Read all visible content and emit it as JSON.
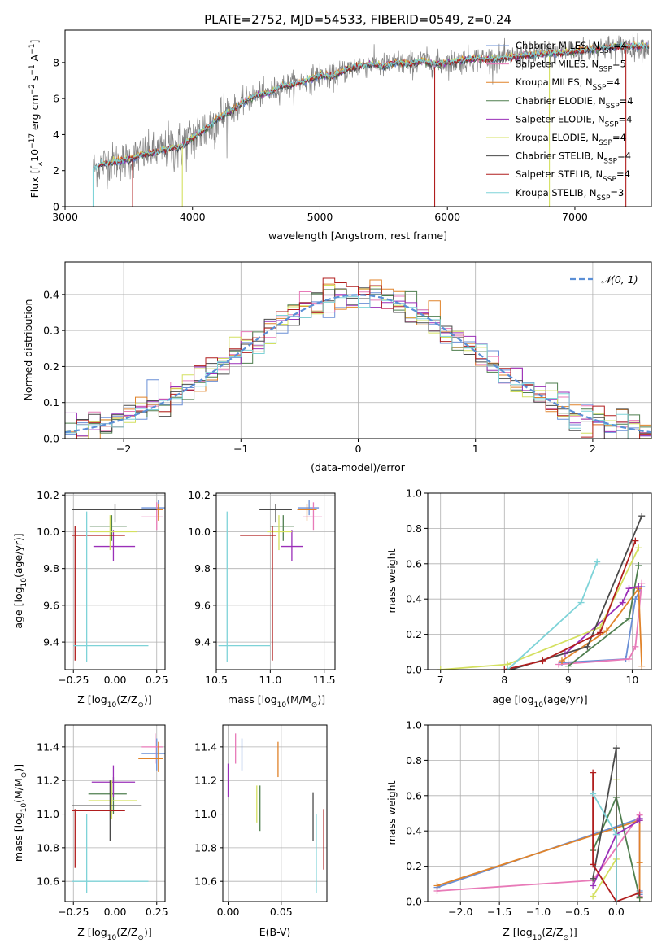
{
  "figure": {
    "title": "PLATE=2752, MJD=54533, FIBERID=0549, z=0.24"
  },
  "colors": {
    "Chabrier MILES": "#6a8fd6",
    "Salpeter MILES": "#e87ab8",
    "Kroupa MILES": "#e0832a",
    "Chabrier ELODIE": "#4f7f4f",
    "Salpeter ELODIE": "#9a2fb8",
    "Kroupa ELODIE": "#d4e060",
    "Chabrier STELIB": "#4a4a4a",
    "Salpeter STELIB": "#b01e1e",
    "Kroupa STELIB": "#7ed3d8",
    "data": "#808080",
    "normal": "#5b8fd6"
  },
  "chart_data": [
    {
      "type": "line",
      "panel": "spectrum",
      "xlabel": "wavelength [Angstrom, rest frame]",
      "ylabel": "Flux [f",
      "ylabel_sub": "λ",
      "ylabel_rest": "10",
      "ylabel_sup": "−17",
      "ylabel_unit": " erg cm",
      "ylabel_sup2": "−2",
      "ylabel_unit2": " s",
      "ylabel_sup3": "−1",
      "ylabel_unit3": " A",
      "ylabel_sup4": "−1",
      "ylabel_end": "]",
      "xlim": [
        3000,
        7600
      ],
      "ylim": [
        0,
        9.8
      ],
      "xticks": [
        "3000",
        "4000",
        "5000",
        "6000",
        "7000"
      ],
      "yticks": [
        "0",
        "2",
        "4",
        "6",
        "8"
      ],
      "continuum": {
        "x": [
          3220,
          3300,
          3400,
          3500,
          3600,
          3700,
          3800,
          3900,
          4000,
          4100,
          4200,
          4300,
          4400,
          4500,
          4600,
          4700,
          4800,
          4900,
          5000,
          5100,
          5200,
          5300,
          5400,
          5500,
          5600,
          5700,
          5800,
          5900,
          6000,
          6200,
          6400,
          6600,
          6800,
          7000,
          7200,
          7400
        ],
        "y": [
          2.1,
          2.4,
          2.5,
          2.6,
          2.9,
          3.0,
          3.2,
          3.3,
          3.8,
          4.3,
          4.9,
          5.3,
          5.8,
          6.2,
          6.3,
          6.7,
          6.8,
          7.0,
          7.3,
          7.2,
          7.6,
          7.8,
          7.9,
          7.8,
          8.0,
          7.9,
          8.1,
          7.9,
          8.0,
          8.2,
          8.2,
          8.4,
          8.5,
          8.6,
          8.8,
          8.9
        ]
      },
      "legend": [
        {
          "label": "Chabrier MILES, N",
          "sub": "SSP",
          "tail": "=4"
        },
        {
          "label": "Salpeter MILES, N",
          "sub": "SSP",
          "tail": "=5"
        },
        {
          "label": "Kroupa MILES, N",
          "sub": "SSP",
          "tail": "=4"
        },
        {
          "label": "Chabrier ELODIE, N",
          "sub": "SSP",
          "tail": "=4"
        },
        {
          "label": "Salpeter ELODIE, N",
          "sub": "SSP",
          "tail": "=4"
        },
        {
          "label": "Kroupa ELODIE, N",
          "sub": "SSP",
          "tail": "=4"
        },
        {
          "label": "Chabrier STELIB, N",
          "sub": "SSP",
          "tail": "=4"
        },
        {
          "label": "Salpeter STELIB, N",
          "sub": "SSP",
          "tail": "=4"
        },
        {
          "label": "Kroupa STELIB, N",
          "sub": "SSP",
          "tail": "=3"
        }
      ]
    },
    {
      "type": "histogram",
      "panel": "residuals",
      "xlabel": "(data-model)/error",
      "ylabel": "Normed distribution",
      "xlim": [
        -2.5,
        2.5
      ],
      "ylim": [
        0,
        0.49
      ],
      "xticks": [
        "−2",
        "−1",
        "0",
        "1",
        "2"
      ],
      "yticks": [
        "0.0",
        "0.1",
        "0.2",
        "0.3",
        "0.4"
      ],
      "legend": "𝒩(0, 1)",
      "bin_width": 0.1,
      "grid": true
    },
    {
      "type": "scatter",
      "panel": "Z-age",
      "xlabel": "Z [log",
      "xlabel_sub": "10",
      "xlabel_rest": "(Z/Z",
      "xlabel_sub2": "⊙",
      "xlabel_end": ")]",
      "ylabel": "age  [log",
      "ylabel_sub": "10",
      "ylabel_end": "(age/yr)]",
      "xlim": [
        -0.3,
        0.3
      ],
      "ylim": [
        9.25,
        10.21
      ],
      "xticks": [
        "−0.25",
        "0.00",
        "0.25"
      ],
      "yticks": [
        "9.4",
        "9.6",
        "9.8",
        "10.0",
        "10.2"
      ],
      "points": [
        {
          "m": "Chabrier MILES",
          "x": 0.26,
          "xe": [
            0.16,
            0.3
          ],
          "y": 10.13,
          "ye": [
            10.09,
            10.17
          ]
        },
        {
          "m": "Salpeter MILES",
          "x": 0.25,
          "xe": [
            0.16,
            0.29
          ],
          "y": 10.08,
          "ye": [
            10.01,
            10.16
          ]
        },
        {
          "m": "Kroupa MILES",
          "x": 0.26,
          "xe": [
            0.16,
            0.29
          ],
          "y": 10.12,
          "ye": [
            10.06,
            10.15
          ]
        },
        {
          "m": "Chabrier ELODIE",
          "x": -0.02,
          "xe": [
            -0.15,
            0.07
          ],
          "y": 10.03,
          "ye": [
            9.95,
            10.09
          ]
        },
        {
          "m": "Salpeter ELODIE",
          "x": -0.01,
          "xe": [
            -0.13,
            0.12
          ],
          "y": 9.92,
          "ye": [
            9.84,
            10.01
          ]
        },
        {
          "m": "Kroupa ELODIE",
          "x": -0.03,
          "xe": [
            -0.15,
            0.13
          ],
          "y": 10.0,
          "ye": [
            9.9,
            10.09
          ]
        },
        {
          "m": "Chabrier STELIB",
          "x": 0.0,
          "xe": [
            -0.26,
            0.25
          ],
          "y": 10.12,
          "ye": [
            10.05,
            10.15
          ]
        },
        {
          "m": "Salpeter STELIB",
          "x": -0.24,
          "xe": [
            -0.26,
            0.06
          ],
          "y": 9.98,
          "ye": [
            9.3,
            10.03
          ]
        },
        {
          "m": "Kroupa STELIB",
          "x": -0.17,
          "xe": [
            -0.25,
            0.2
          ],
          "y": 9.38,
          "ye": [
            9.29,
            10.11
          ]
        }
      ]
    },
    {
      "type": "scatter",
      "panel": "mass-age",
      "xlabel": "mass [log",
      "xlabel_sub": "10",
      "xlabel_end": "(M/M",
      "xlabel_sub2": "⊙",
      "xlabel_end2": ")]",
      "xlim": [
        10.5,
        11.6
      ],
      "ylim": [
        9.25,
        10.21
      ],
      "xticks": [
        "10.5",
        "11.0",
        "11.5"
      ],
      "yticks": [
        "9.4",
        "9.6",
        "9.8",
        "10.0",
        "10.2"
      ],
      "points": [
        {
          "m": "Chabrier MILES",
          "x": 11.36,
          "xe": [
            11.26,
            11.45
          ],
          "y": 10.13,
          "ye": [
            10.09,
            10.17
          ]
        },
        {
          "m": "Salpeter MILES",
          "x": 11.4,
          "xe": [
            11.3,
            11.48
          ],
          "y": 10.08,
          "ye": [
            10.01,
            10.16
          ]
        },
        {
          "m": "Kroupa MILES",
          "x": 11.34,
          "xe": [
            11.25,
            11.43
          ],
          "y": 10.12,
          "ye": [
            10.06,
            10.15
          ]
        },
        {
          "m": "Chabrier ELODIE",
          "x": 11.12,
          "xe": [
            11.0,
            11.22
          ],
          "y": 10.03,
          "ye": [
            9.95,
            10.09
          ]
        },
        {
          "m": "Salpeter ELODIE",
          "x": 11.2,
          "xe": [
            11.1,
            11.3
          ],
          "y": 9.92,
          "ye": [
            9.84,
            10.01
          ]
        },
        {
          "m": "Kroupa ELODIE",
          "x": 11.08,
          "xe": [
            10.97,
            11.2
          ],
          "y": 10.0,
          "ye": [
            9.9,
            10.09
          ]
        },
        {
          "m": "Chabrier STELIB",
          "x": 11.05,
          "xe": [
            10.9,
            11.2
          ],
          "y": 10.12,
          "ye": [
            10.05,
            10.15
          ]
        },
        {
          "m": "Salpeter STELIB",
          "x": 11.02,
          "xe": [
            10.72,
            11.05
          ],
          "y": 9.98,
          "ye": [
            9.3,
            10.03
          ]
        },
        {
          "m": "Kroupa STELIB",
          "x": 10.6,
          "xe": [
            10.52,
            11.0
          ],
          "y": 9.38,
          "ye": [
            9.29,
            10.11
          ]
        }
      ]
    },
    {
      "type": "line",
      "panel": "age-weight",
      "xlabel": "age  [log",
      "xlabel_sub": "10",
      "xlabel_end": "(age/yr)]",
      "ylabel": "mass weight",
      "xlim": [
        6.8,
        10.3
      ],
      "ylim": [
        0,
        1
      ],
      "xticks": [
        "7",
        "8",
        "9",
        "10"
      ],
      "yticks": [
        "0.0",
        "0.2",
        "0.4",
        "0.6",
        "0.8",
        "1.0"
      ],
      "series": [
        {
          "m": "Chabrier MILES",
          "x": [
            8.9,
            9.9,
            10.05,
            10.15
          ],
          "y": [
            0.04,
            0.06,
            0.4,
            0.47
          ]
        },
        {
          "m": "Salpeter MILES",
          "x": [
            8.85,
            9.95,
            10.05,
            10.15
          ],
          "y": [
            0.03,
            0.06,
            0.13,
            0.49
          ]
        },
        {
          "m": "Kroupa MILES",
          "x": [
            8.9,
            9.6,
            10.1,
            10.15
          ],
          "y": [
            0.05,
            0.22,
            0.46,
            0.02
          ]
        },
        {
          "m": "Chabrier ELODIE",
          "x": [
            9.0,
            9.95,
            10.1
          ],
          "y": [
            0.02,
            0.29,
            0.59
          ]
        },
        {
          "m": "Salpeter ELODIE",
          "x": [
            8.95,
            9.85,
            9.95,
            10.1
          ],
          "y": [
            0.09,
            0.38,
            0.46,
            0.47
          ]
        },
        {
          "m": "Kroupa ELODIE",
          "x": [
            7.0,
            8.05,
            9.5,
            10.1
          ],
          "y": [
            0.0,
            0.03,
            0.24,
            0.69
          ]
        },
        {
          "m": "Chabrier STELIB",
          "x": [
            8.1,
            9.3,
            10.15
          ],
          "y": [
            0.0,
            0.13,
            0.87
          ]
        },
        {
          "m": "Salpeter STELIB",
          "x": [
            8.0,
            8.6,
            9.5,
            10.05
          ],
          "y": [
            0.0,
            0.05,
            0.21,
            0.73
          ]
        },
        {
          "m": "Kroupa STELIB",
          "x": [
            8.05,
            9.2,
            9.45
          ],
          "y": [
            0.0,
            0.38,
            0.61
          ]
        }
      ]
    },
    {
      "type": "scatter",
      "panel": "Z-mass",
      "xlabel": "Z [log",
      "xlabel_sub": "10",
      "xlabel_rest": "(Z/Z",
      "xlabel_sub2": "⊙",
      "xlabel_end": ")]",
      "ylabel": "mass [log",
      "ylabel_sub": "10",
      "ylabel_rest": "(M/M",
      "ylabel_sub2": "⊙",
      "ylabel_end": ")]",
      "xlim": [
        -0.3,
        0.3
      ],
      "ylim": [
        10.48,
        11.53
      ],
      "xticks": [
        "−0.25",
        "0.00",
        "0.25"
      ],
      "yticks": [
        "10.6",
        "10.8",
        "11.0",
        "11.2",
        "11.4"
      ],
      "points": [
        {
          "m": "Chabrier MILES",
          "x": 0.25,
          "xe": [
            0.16,
            0.3
          ],
          "y": 11.36,
          "ye": [
            11.26,
            11.45
          ]
        },
        {
          "m": "Salpeter MILES",
          "x": 0.24,
          "xe": [
            0.16,
            0.29
          ],
          "y": 11.4,
          "ye": [
            11.3,
            11.48
          ]
        },
        {
          "m": "Kroupa MILES",
          "x": 0.26,
          "xe": [
            0.14,
            0.29
          ],
          "y": 11.33,
          "ye": [
            11.25,
            11.43
          ]
        },
        {
          "m": "Chabrier ELODIE",
          "x": -0.01,
          "xe": [
            -0.16,
            0.07
          ],
          "y": 11.12,
          "ye": [
            11.0,
            11.22
          ]
        },
        {
          "m": "Salpeter ELODIE",
          "x": -0.01,
          "xe": [
            -0.14,
            0.12
          ],
          "y": 11.19,
          "ye": [
            11.1,
            11.29
          ]
        },
        {
          "m": "Kroupa ELODIE",
          "x": -0.02,
          "xe": [
            -0.16,
            0.13
          ],
          "y": 11.08,
          "ye": [
            10.97,
            11.2
          ]
        },
        {
          "m": "Chabrier STELIB",
          "x": -0.03,
          "xe": [
            -0.26,
            0.16
          ],
          "y": 11.05,
          "ye": [
            10.84,
            11.2
          ]
        },
        {
          "m": "Salpeter STELIB",
          "x": -0.24,
          "xe": [
            -0.26,
            0.06
          ],
          "y": 11.02,
          "ye": [
            10.68,
            11.03
          ]
        },
        {
          "m": "Kroupa STELIB",
          "x": -0.17,
          "xe": [
            -0.26,
            0.2
          ],
          "y": 10.6,
          "ye": [
            10.53,
            11.0
          ]
        }
      ]
    },
    {
      "type": "errorbar",
      "panel": "EBV-mass",
      "xlabel": "E(B-V)",
      "xlim": [
        -0.005,
        0.093
      ],
      "ylim": [
        10.48,
        11.53
      ],
      "xticks": [
        "0.00",
        "0.05"
      ],
      "yticks": [
        "10.6",
        "10.8",
        "11.0",
        "11.2",
        "11.4"
      ],
      "points": [
        {
          "m": "Chabrier MILES",
          "x": 0.013,
          "ye": [
            11.26,
            11.45
          ]
        },
        {
          "m": "Salpeter MILES",
          "x": 0.007,
          "ye": [
            11.3,
            11.48
          ]
        },
        {
          "m": "Kroupa MILES",
          "x": 0.047,
          "ye": [
            11.22,
            11.43
          ]
        },
        {
          "m": "Chabrier ELODIE",
          "x": 0.03,
          "ye": [
            10.9,
            11.17
          ]
        },
        {
          "m": "Salpeter ELODIE",
          "x": 0.0,
          "ye": [
            11.1,
            11.3
          ]
        },
        {
          "m": "Kroupa ELODIE",
          "x": 0.027,
          "ye": [
            10.95,
            11.17
          ]
        },
        {
          "m": "Chabrier STELIB",
          "x": 0.08,
          "ye": [
            10.84,
            11.13
          ]
        },
        {
          "m": "Salpeter STELIB",
          "x": 0.09,
          "ye": [
            10.67,
            11.03
          ]
        },
        {
          "m": "Kroupa STELIB",
          "x": 0.083,
          "ye": [
            10.53,
            11.0
          ]
        }
      ]
    },
    {
      "type": "line",
      "panel": "Z-weight",
      "xlabel": "Z [log",
      "xlabel_sub": "10",
      "xlabel_rest": "(Z/Z",
      "xlabel_sub2": "⊙",
      "xlabel_end": ")]",
      "ylabel": "mass weight",
      "xlim": [
        -2.42,
        0.45
      ],
      "ylim": [
        0,
        1
      ],
      "xticks": [
        "−2.0",
        "−1.5",
        "−1.0",
        "−0.5",
        "0.0"
      ],
      "yticks": [
        "0.0",
        "0.2",
        "0.4",
        "0.6",
        "0.8",
        "1.0"
      ],
      "series": [
        {
          "m": "Chabrier MILES",
          "x": [
            -2.3,
            0.3,
            0.3,
            0.3
          ],
          "y": [
            0.08,
            0.47,
            0.04,
            0.06
          ]
        },
        {
          "m": "Salpeter MILES",
          "x": [
            -2.3,
            -0.3,
            0.3,
            0.3
          ],
          "y": [
            0.06,
            0.12,
            0.49,
            0.03
          ]
        },
        {
          "m": "Kroupa MILES",
          "x": [
            -2.3,
            0.3,
            0.3,
            0.3
          ],
          "y": [
            0.09,
            0.46,
            0.22,
            0.02
          ]
        },
        {
          "m": "Chabrier ELODIE",
          "x": [
            -0.3,
            0.0,
            0.3
          ],
          "y": [
            0.29,
            0.59,
            0.02
          ]
        },
        {
          "m": "Salpeter ELODIE",
          "x": [
            -0.3,
            0.0,
            0.3,
            0.3
          ],
          "y": [
            0.09,
            0.38,
            0.46,
            0.47
          ]
        },
        {
          "m": "Kroupa ELODIE",
          "x": [
            -0.3,
            0.0,
            0.0
          ],
          "y": [
            0.03,
            0.24,
            0.69
          ]
        },
        {
          "m": "Chabrier STELIB",
          "x": [
            -0.3,
            0.0,
            0.0
          ],
          "y": [
            0.13,
            0.87,
            0.0
          ]
        },
        {
          "m": "Salpeter STELIB",
          "x": [
            -0.3,
            -0.3,
            0.0,
            0.3
          ],
          "y": [
            0.73,
            0.21,
            0.0,
            0.05
          ]
        },
        {
          "m": "Kroupa STELIB",
          "x": [
            -0.3,
            0.0,
            0.0
          ],
          "y": [
            0.61,
            0.38,
            0.0
          ]
        }
      ]
    }
  ]
}
